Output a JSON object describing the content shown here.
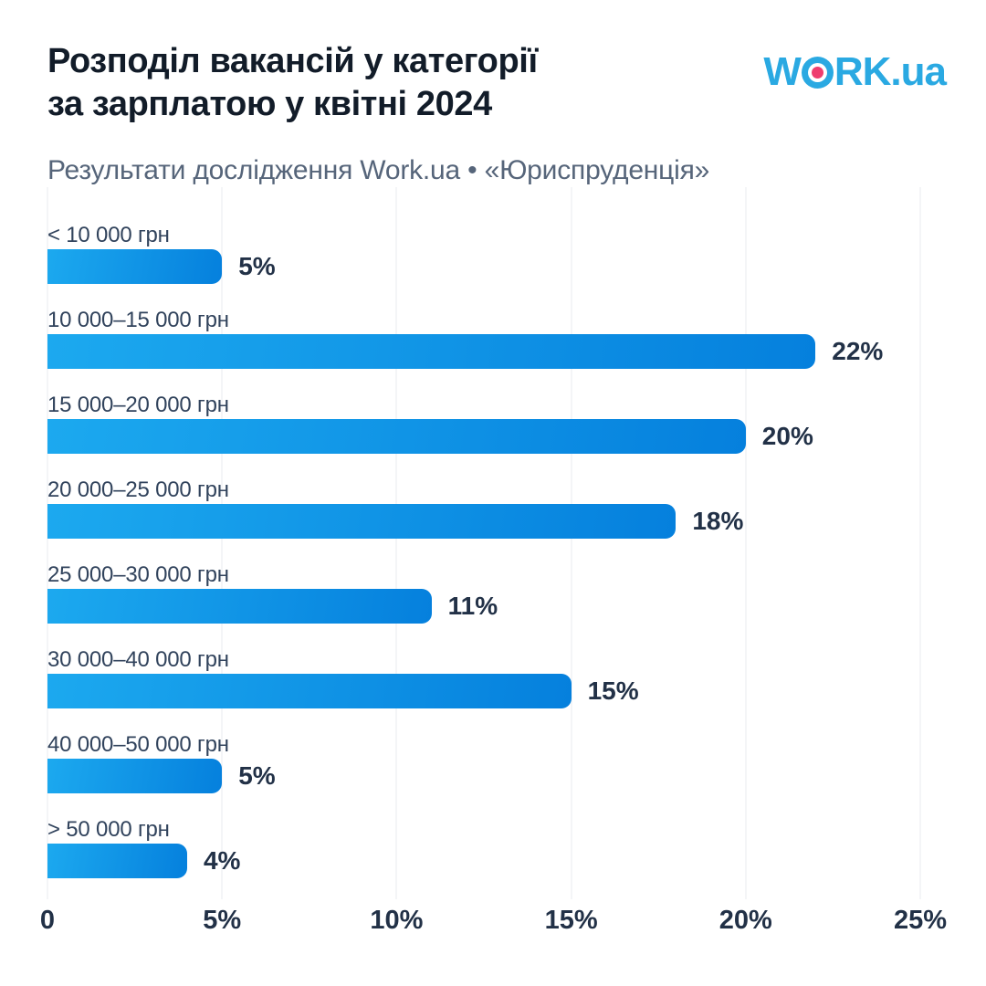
{
  "header": {
    "title_line1": "Розподіл вакансій у категорії",
    "title_line2": "за зарплатою у квітні 2024",
    "subtitle": "Результати дослідження Work.ua • «Юриспруденція»"
  },
  "logo": {
    "text": "WORK.ua",
    "part_w": "W",
    "part_rk": "RK",
    "suffix": ".ua",
    "blue": "#2aa9e2",
    "pink": "#ee3d6f"
  },
  "chart_data": {
    "type": "bar",
    "orientation": "horizontal",
    "title": "Розподіл вакансій у категорії за зарплатою у квітні 2024",
    "subtitle": "Результати дослідження Work.ua • «Юриспруденція»",
    "categories": [
      "< 10 000 грн",
      "10 000–15 000 грн",
      "15 000–20 000 грн",
      "20 000–25 000 грн",
      "25 000–30 000 грн",
      "30 000–40 000 грн",
      "40 000–50 000 грн",
      "> 50 000 грн"
    ],
    "values": [
      5,
      22,
      20,
      18,
      11,
      15,
      5,
      4
    ],
    "value_labels": [
      "5%",
      "22%",
      "20%",
      "18%",
      "11%",
      "15%",
      "5%",
      "4%"
    ],
    "xlabel": "",
    "ylabel": "",
    "xlim": [
      0,
      25
    ],
    "x_ticks": [
      {
        "value": 0,
        "label": "0"
      },
      {
        "value": 5,
        "label": "5%"
      },
      {
        "value": 10,
        "label": "10%"
      },
      {
        "value": 15,
        "label": "15%"
      },
      {
        "value": 20,
        "label": "20%"
      },
      {
        "value": 25,
        "label": "25%"
      }
    ],
    "grid": true,
    "gridline_color": "#e9ebef",
    "bar_color_start": "#1ca9ef",
    "bar_color_end": "#0580dd",
    "legend": false
  }
}
